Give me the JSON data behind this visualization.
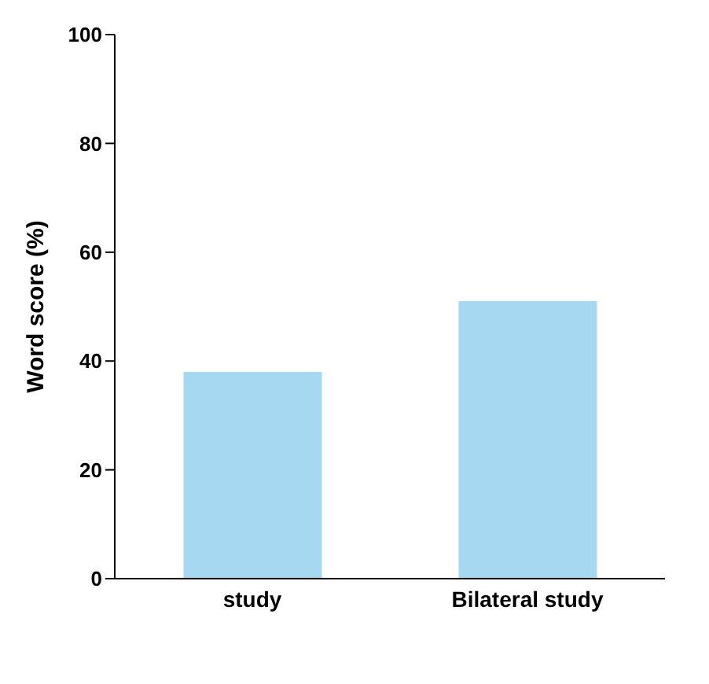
{
  "chart_data": {
    "type": "bar",
    "ylabel": "Word score (%)",
    "categories": [
      "study",
      "Bilateral study"
    ],
    "values": [
      38,
      51
    ],
    "color": "#a6d8f2",
    "ylim": [
      0,
      100
    ],
    "yticks": [
      0,
      20,
      40,
      60,
      80,
      100
    ],
    "grid": false
  }
}
